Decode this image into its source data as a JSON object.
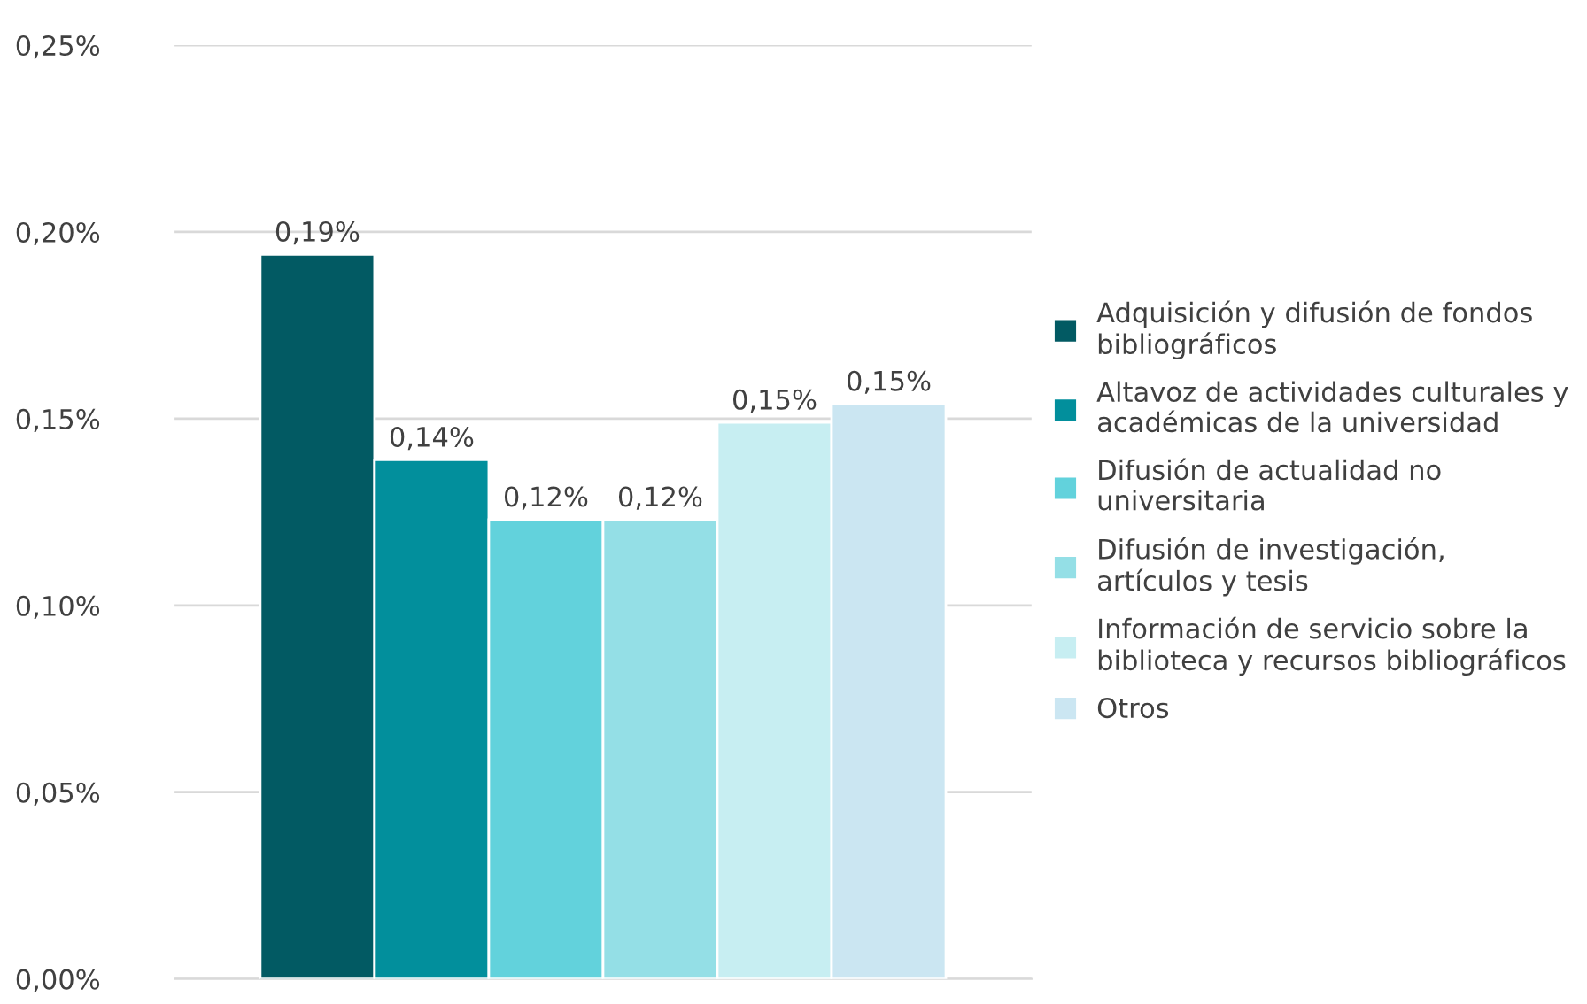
{
  "chart_data": {
    "type": "bar",
    "categories": [
      null
    ],
    "series": [
      {
        "name": "Adquisición y difusión de fondos\nbibliográficos",
        "color": "#025a63",
        "values": [
          0.194
        ],
        "value_labels": [
          "0,19%"
        ]
      },
      {
        "name": "Altavoz de actividades culturales y\nacadémicas de la universidad",
        "color": "#028f9c",
        "values": [
          0.139
        ],
        "value_labels": [
          "0,14%"
        ]
      },
      {
        "name": "Difusión de actualidad no\nuniversitaria",
        "color": "#62d2dc",
        "values": [
          0.123
        ],
        "value_labels": [
          "0,12%"
        ]
      },
      {
        "name": "Difusión de investigación,\nartículos y tesis",
        "color": "#94dfe6",
        "values": [
          0.123
        ],
        "value_labels": [
          "0,12%"
        ]
      },
      {
        "name": "Información de servicio sobre la\nbiblioteca y recursos bibliográficos",
        "color": "#c7eef2",
        "values": [
          0.149
        ],
        "value_labels": [
          "0,15%"
        ]
      },
      {
        "name": "Otros",
        "color": "#cbe6f2",
        "values": [
          0.154
        ],
        "value_labels": [
          "0,15%"
        ]
      }
    ],
    "ylim": [
      0,
      0.25
    ],
    "yticks": [
      {
        "value": 0,
        "label": "0,00%"
      },
      {
        "value": 0.05,
        "label": "0,05%"
      },
      {
        "value": 0.1,
        "label": "0,10%"
      },
      {
        "value": 0.15,
        "label": "0,15%"
      },
      {
        "value": 0.2,
        "label": "0,20%"
      },
      {
        "value": 0.25,
        "label": "0,25%"
      }
    ],
    "grid": "y",
    "legend": "right"
  }
}
